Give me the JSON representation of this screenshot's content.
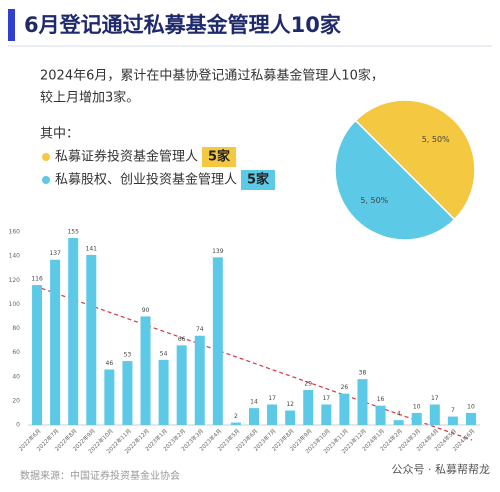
{
  "title": "6月登记通过私募基金管理人10家",
  "intro": [
    "2024年6月，累计在中基协登记通过私募基金管理人10家，",
    "较上月增加3家。"
  ],
  "legend_heading": "其中：",
  "source": "数据来源：中国证券投资基金业协会",
  "credit": "公众号 · 私募帮帮龙",
  "chart_data": [
    {
      "type": "pie",
      "categories": [
        "私募证券投资基金管理人",
        "私募股权、创业投资基金管理人"
      ],
      "values": [
        5,
        5
      ],
      "value_labels": [
        "5, 50%",
        "5, 50%"
      ],
      "legend_labels": [
        "5家",
        "5家"
      ],
      "colors": [
        "#f5c842",
        "#5cc9e6"
      ]
    },
    {
      "type": "bar",
      "categories": [
        "2022年6月",
        "2022年7月",
        "2022年8月",
        "2022年9月",
        "2022年10月",
        "2022年11月",
        "2022年12月",
        "2023年1月",
        "2023年2月",
        "2023年3月",
        "2023年4月",
        "2023年5月",
        "2023年6月",
        "2023年7月",
        "2023年8月",
        "2023年9月",
        "2023年10月",
        "2023年11月",
        "2023年12月",
        "2024年1月",
        "2024年2月",
        "2024年3月",
        "2024年4月",
        "2024年5月",
        "2024年6月"
      ],
      "values": [
        116,
        137,
        155,
        141,
        46,
        53,
        90,
        54,
        66,
        74,
        139,
        2,
        14,
        17,
        12,
        29,
        17,
        26,
        38,
        16,
        4,
        10,
        17,
        7,
        10
      ],
      "color": "#5cc9e6",
      "ylim": [
        0,
        160
      ],
      "yticks": [
        0,
        20,
        40,
        60,
        80,
        100,
        120,
        140,
        160
      ],
      "grid": false
    }
  ]
}
